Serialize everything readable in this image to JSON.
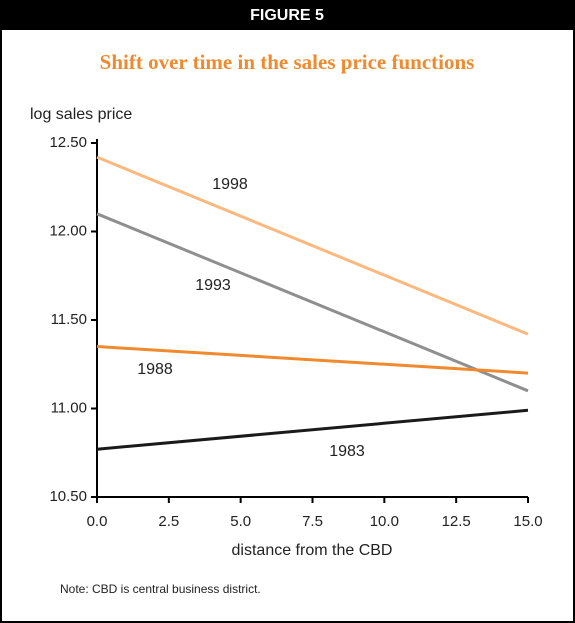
{
  "chart_data": {
    "type": "line",
    "figure_label": "FIGURE 5",
    "title": "Shift over time in the sales price functions",
    "y_label": "log sales price",
    "x_label": "distance from the CBD",
    "note": "Note: CBD is central business district.",
    "x": [
      0,
      15
    ],
    "series": [
      {
        "name": "1998",
        "color": "#fbb980",
        "values": [
          12.42,
          11.42
        ]
      },
      {
        "name": "1993",
        "color": "#8f8f8f",
        "values": [
          12.1,
          11.1
        ]
      },
      {
        "name": "1988",
        "color": "#f08a2e",
        "values": [
          11.35,
          11.2
        ]
      },
      {
        "name": "1983",
        "color": "#1a1a1a",
        "values": [
          10.77,
          10.99
        ]
      }
    ],
    "xlim": [
      0,
      15
    ],
    "xticks": [
      {
        "value": 0,
        "label": "0.0"
      },
      {
        "value": 2.5,
        "label": "2.5"
      },
      {
        "value": 5,
        "label": "5.0"
      },
      {
        "value": 7.5,
        "label": "7.5"
      },
      {
        "value": 10,
        "label": "10.0"
      },
      {
        "value": 12.5,
        "label": "12.5"
      },
      {
        "value": 15,
        "label": "15.0"
      }
    ],
    "ylim": [
      10.5,
      12.5
    ],
    "yticks": [
      {
        "value": 10.5,
        "label": "10.50"
      },
      {
        "value": 11,
        "label": "11.00"
      },
      {
        "value": 11.5,
        "label": "11.50"
      },
      {
        "value": 12,
        "label": "12.00"
      },
      {
        "value": 12.5,
        "label": "12.50"
      }
    ]
  }
}
